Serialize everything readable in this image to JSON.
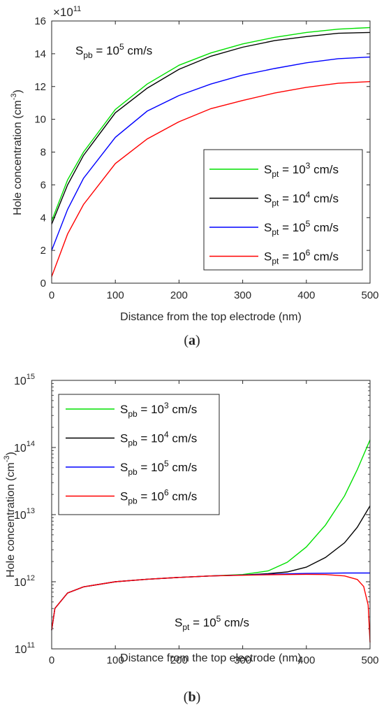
{
  "panel_a": {
    "label": "a",
    "inset": {
      "main": "S",
      "sub": "pb",
      "mid": " = 10",
      "sup": "5",
      "tail": " cm/s"
    },
    "axis_exponent": {
      "base": "×10",
      "sup": "11"
    }
  },
  "panel_b": {
    "label": "b",
    "inset": {
      "main": "S",
      "sub": "pt",
      "mid": " = 10",
      "sup": "5",
      "tail": " cm/s"
    }
  },
  "chart_data": [
    {
      "type": "line",
      "xlabel": "Distance from the top electrode (nm)",
      "ylabel": "Hole concentration (cm",
      "ylabel_sup": "-3",
      "ylabel_close": ")",
      "xlim": [
        0,
        500
      ],
      "ylim": [
        0,
        16
      ],
      "y_multiplier": "×10^11",
      "xticks": [
        "0",
        "100",
        "200",
        "300",
        "400",
        "500"
      ],
      "yticks": [
        "0",
        "2",
        "4",
        "6",
        "8",
        "10",
        "12",
        "14",
        "16"
      ],
      "legend_position": "bottom-right",
      "grid": false,
      "x": [
        0,
        25,
        50,
        100,
        150,
        200,
        250,
        300,
        350,
        400,
        450,
        500
      ],
      "series": [
        {
          "name": "S_pt = 10^3 cm/s",
          "legend": {
            "main": "S",
            "sub": "pt",
            "mid": " = 10",
            "sup": "3",
            "tail": " cm/s"
          },
          "color": "#00e000",
          "values": [
            3.8,
            6.3,
            8.0,
            10.6,
            12.15,
            13.3,
            14.05,
            14.6,
            15.0,
            15.3,
            15.5,
            15.6
          ]
        },
        {
          "name": "S_pt = 10^4 cm/s",
          "legend": {
            "main": "S",
            "sub": "pt",
            "mid": " = 10",
            "sup": "4",
            "tail": " cm/s"
          },
          "color": "#000000",
          "values": [
            3.6,
            6.0,
            7.8,
            10.4,
            11.9,
            13.05,
            13.85,
            14.4,
            14.8,
            15.05,
            15.25,
            15.3
          ]
        },
        {
          "name": "S_pt = 10^5 cm/s",
          "legend": {
            "main": "S",
            "sub": "pt",
            "mid": " = 10",
            "sup": "5",
            "tail": " cm/s"
          },
          "color": "#0000ff",
          "values": [
            2.0,
            4.5,
            6.4,
            8.9,
            10.5,
            11.45,
            12.15,
            12.7,
            13.1,
            13.45,
            13.7,
            13.8
          ]
        },
        {
          "name": "S_pt = 10^6 cm/s",
          "legend": {
            "main": "S",
            "sub": "pt",
            "mid": " = 10",
            "sup": "6",
            "tail": " cm/s"
          },
          "color": "#ff0000",
          "values": [
            0.4,
            3.0,
            4.8,
            7.3,
            8.8,
            9.85,
            10.65,
            11.15,
            11.6,
            11.95,
            12.2,
            12.3
          ]
        }
      ]
    },
    {
      "type": "line",
      "xlabel": "Distance from the top electrode (nm)",
      "ylabel": "Hole concentration (cm",
      "ylabel_sup": "-3",
      "ylabel_close": ")",
      "xlim": [
        0,
        500
      ],
      "ylim": [
        100000000000.0,
        1000000000000000.0
      ],
      "yscale": "log",
      "xticks": [
        "0",
        "100",
        "200",
        "300",
        "400",
        "500"
      ],
      "yticks": [
        {
          "base": "10",
          "sup": "11",
          "value": 100000000000.0
        },
        {
          "base": "10",
          "sup": "12",
          "value": 1000000000000.0
        },
        {
          "base": "10",
          "sup": "13",
          "value": 10000000000000.0
        },
        {
          "base": "10",
          "sup": "14",
          "value": 100000000000000.0
        },
        {
          "base": "10",
          "sup": "15",
          "value": 1000000000000000.0
        }
      ],
      "legend_position": "top-left",
      "grid": false,
      "series": [
        {
          "name": "S_pb = 10^3 cm/s",
          "legend": {
            "main": "S",
            "sub": "pb",
            "mid": " = 10",
            "sup": "3",
            "tail": " cm/s"
          },
          "color": "#00e000",
          "x": [
            0,
            5,
            25,
            50,
            100,
            150,
            200,
            250,
            300,
            340,
            370,
            400,
            430,
            460,
            480,
            500
          ],
          "values": [
            190000000000.0,
            400000000000.0,
            680000000000.0,
            840000000000.0,
            1000000000000.0,
            1090000000000.0,
            1160000000000.0,
            1220000000000.0,
            1280000000000.0,
            1450000000000.0,
            1950000000000.0,
            3300000000000.0,
            7000000000000.0,
            19000000000000.0,
            47000000000000.0,
            130000000000000.0
          ]
        },
        {
          "name": "S_pb = 10^4 cm/s",
          "legend": {
            "main": "S",
            "sub": "pb",
            "mid": " = 10",
            "sup": "4",
            "tail": " cm/s"
          },
          "color": "#000000",
          "x": [
            0,
            5,
            25,
            50,
            100,
            150,
            200,
            250,
            300,
            340,
            370,
            400,
            430,
            460,
            480,
            500
          ],
          "values": [
            190000000000.0,
            400000000000.0,
            680000000000.0,
            840000000000.0,
            1000000000000.0,
            1090000000000.0,
            1160000000000.0,
            1220000000000.0,
            1260000000000.0,
            1320000000000.0,
            1400000000000.0,
            1650000000000.0,
            2300000000000.0,
            3800000000000.0,
            6500000000000.0,
            13500000000000.0
          ]
        },
        {
          "name": "S_pb = 10^5 cm/s",
          "legend": {
            "main": "S",
            "sub": "pb",
            "mid": " = 10",
            "sup": "5",
            "tail": " cm/s"
          },
          "color": "#0000ff",
          "x": [
            0,
            5,
            25,
            50,
            100,
            150,
            200,
            250,
            300,
            340,
            370,
            400,
            430,
            460,
            480,
            500
          ],
          "values": [
            190000000000.0,
            400000000000.0,
            680000000000.0,
            840000000000.0,
            1000000000000.0,
            1090000000000.0,
            1160000000000.0,
            1220000000000.0,
            1260000000000.0,
            1290000000000.0,
            1310000000000.0,
            1330000000000.0,
            1340000000000.0,
            1350000000000.0,
            1350000000000.0,
            1350000000000.0
          ]
        },
        {
          "name": "S_pb = 10^6 cm/s",
          "legend": {
            "main": "S",
            "sub": "pb",
            "mid": " = 10",
            "sup": "6",
            "tail": " cm/s"
          },
          "color": "#ff0000",
          "x": [
            0,
            5,
            25,
            50,
            100,
            150,
            200,
            250,
            300,
            340,
            370,
            400,
            430,
            460,
            480,
            490,
            497,
            500
          ],
          "values": [
            190000000000.0,
            400000000000.0,
            680000000000.0,
            840000000000.0,
            1000000000000.0,
            1090000000000.0,
            1160000000000.0,
            1220000000000.0,
            1250000000000.0,
            1270000000000.0,
            1280000000000.0,
            1290000000000.0,
            1280000000000.0,
            1220000000000.0,
            1080000000000.0,
            850000000000.0,
            450000000000.0,
            125000000000.0
          ]
        }
      ]
    }
  ]
}
